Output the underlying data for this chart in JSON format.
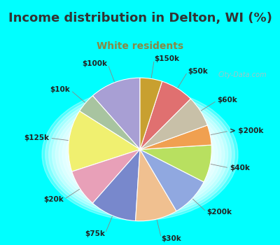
{
  "title": "Income distribution in Delton, WI (%)",
  "subtitle": "White residents",
  "background_top": "#00FFFF",
  "background_chart_colors": [
    "#e0f4f0",
    "#d0ecd8"
  ],
  "watermark": "City-Data.com",
  "labels": [
    "$100k",
    "$10k",
    "$125k",
    "$20k",
    "$75k",
    "$30k",
    "$200k",
    "$40k",
    "> $200k",
    "$60k",
    "$50k",
    "$150k"
  ],
  "sizes": [
    11.5,
    4.5,
    14.0,
    8.5,
    10.5,
    9.5,
    9.0,
    8.5,
    4.5,
    7.0,
    7.5,
    5.0
  ],
  "colors": [
    "#a89fd4",
    "#a8c4a0",
    "#f0f070",
    "#e8a0b8",
    "#7888cc",
    "#f0c090",
    "#90a8e0",
    "#b8e060",
    "#f0a050",
    "#c8c0a8",
    "#e07070",
    "#c8a030"
  ],
  "startangle": 90,
  "title_fontsize": 13,
  "subtitle_fontsize": 10,
  "label_fontsize": 7.5,
  "title_color": "#333333",
  "subtitle_color": "#888844"
}
